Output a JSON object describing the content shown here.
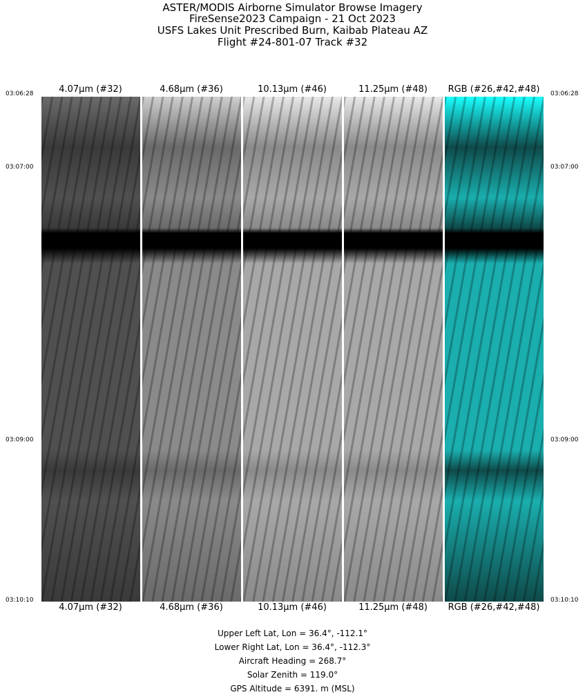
{
  "title_lines": [
    "ASTER/MODIS Airborne Simulator Browse Imagery",
    "FireSense2023 Campaign - 21 Oct 2023",
    "USFS Lakes Unit Prescribed Burn, Kaibab Plateau AZ",
    "Flight #24-801-07 Track #32"
  ],
  "panels": [
    {
      "label": "4.07µm (#32)",
      "tone": "dark"
    },
    {
      "label": "4.68µm (#36)",
      "tone": "mid"
    },
    {
      "label": "10.13µm (#46)",
      "tone": "light"
    },
    {
      "label": "11.25µm (#48)",
      "tone": "light"
    },
    {
      "label": "RGB (#26,#42,#48)",
      "tone": "cyan"
    }
  ],
  "time_ticks": [
    "03:06:28",
    "03:07:00",
    "03:09:00",
    "03:10:10"
  ],
  "info_lines": [
    "Upper Left Lat, Lon =   36.4°, -112.1°",
    "Lower Right Lat, Lon =   36.4°, -112.3°",
    "Aircraft Heading =  268.7°",
    "Solar Zenith =  119.0°",
    "GPS Altitude =   6391. m (MSL)"
  ]
}
